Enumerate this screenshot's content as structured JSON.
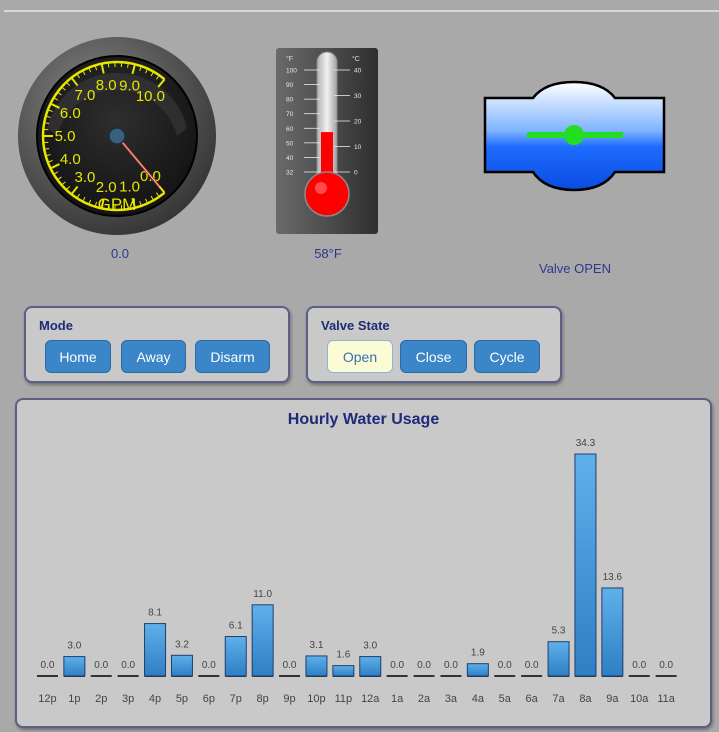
{
  "gauge": {
    "value_text": "0.0",
    "unit": "GPM",
    "ticks": [
      "0.0",
      "1.0",
      "2.0",
      "3.0",
      "4.0",
      "5.0",
      "6.0",
      "7.0",
      "8.0",
      "9.0",
      "10.0"
    ],
    "value": 0.0,
    "min": 0,
    "max": 10
  },
  "thermometer": {
    "value_text": "58°F",
    "f_label": "°F",
    "c_label": "°C",
    "f_ticks": [
      "100",
      "90",
      "80",
      "70",
      "60",
      "50",
      "40",
      "32"
    ],
    "c_ticks": [
      "40",
      "30",
      "20",
      "10",
      "0"
    ],
    "fill_fraction": 0.45
  },
  "valve": {
    "status": "Valve OPEN"
  },
  "mode": {
    "title": "Mode",
    "buttons": [
      "Home",
      "Away",
      "Disarm"
    ]
  },
  "valve_state": {
    "title": "Valve State",
    "buttons": [
      "Open",
      "Close",
      "Cycle"
    ],
    "active": "Open"
  },
  "colors": {
    "bar_top": "#5fb0ea",
    "bar_bottom": "#2e7fc4",
    "title": "#1f2a78",
    "button": "#3a86c8"
  },
  "chart_data": {
    "type": "bar",
    "title": "Hourly Water Usage",
    "categories": [
      "12p",
      "1p",
      "2p",
      "3p",
      "4p",
      "5p",
      "6p",
      "7p",
      "8p",
      "9p",
      "10p",
      "11p",
      "12a",
      "1a",
      "2a",
      "3a",
      "4a",
      "5a",
      "6a",
      "7a",
      "8a",
      "9a",
      "10a",
      "11a"
    ],
    "values": [
      0.0,
      3.0,
      0.0,
      0.0,
      8.1,
      3.2,
      0.0,
      6.1,
      11.0,
      0.0,
      3.1,
      1.6,
      3.0,
      0.0,
      0.0,
      0.0,
      1.9,
      0.0,
      0.0,
      5.3,
      34.3,
      13.6,
      0.0,
      0.0
    ],
    "labels": [
      "0.0",
      "3.0",
      "0.0",
      "0.0",
      "8.1",
      "3.2",
      "0.0",
      "6.1",
      "11.0",
      "0.0",
      "3.1",
      "1.6",
      "3.0",
      "0.0",
      "0.0",
      "0.0",
      "1.9",
      "0.0",
      "0.0",
      "5.3",
      "34.3",
      "13.6",
      "0.0",
      "0.0"
    ],
    "ylim": [
      0,
      34.3
    ]
  }
}
